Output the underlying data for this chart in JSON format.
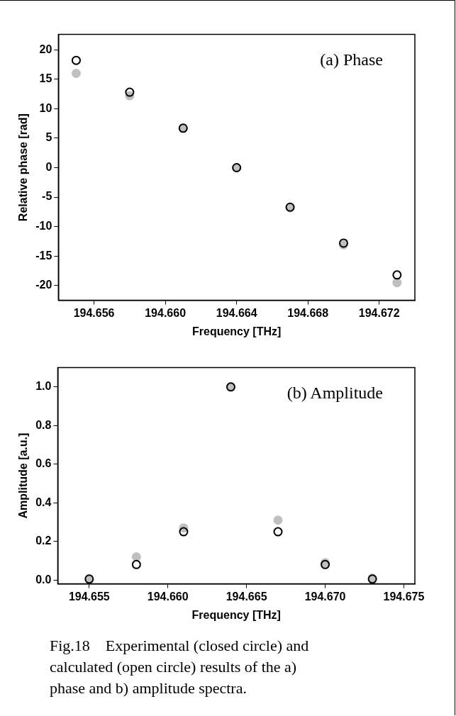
{
  "chart_data": [
    {
      "type": "scatter",
      "title": "(a) Phase",
      "xlabel": "Frequency [THz]",
      "ylabel": "Relative phase [rad]",
      "x": [
        194.655,
        194.658,
        194.661,
        194.664,
        194.667,
        194.67,
        194.673
      ],
      "series": [
        {
          "color": "#c0c0c0",
          "values": [
            16,
            12.2,
            6.7,
            0,
            -6.8,
            -13.1,
            -19.5
          ]
        },
        {
          "color": "#000000",
          "values": [
            18.2,
            12.8,
            6.7,
            0,
            -6.7,
            -12.8,
            -18.2
          ]
        }
      ],
      "xlim": [
        194.654,
        194.674
      ],
      "xticks": [
        {
          "value": 194.656,
          "label": "194.656"
        },
        {
          "value": 194.66,
          "label": "194.660"
        },
        {
          "value": 194.664,
          "label": "194.664"
        },
        {
          "value": 194.668,
          "label": "194.668"
        },
        {
          "value": 194.672,
          "label": "194.672"
        }
      ],
      "ylim": [
        -22.5,
        22.6
      ],
      "yticks": [
        -20,
        -15,
        -10,
        -5,
        0,
        5,
        10,
        15,
        20
      ],
      "grid": false,
      "legend": false,
      "marker": "circle"
    },
    {
      "type": "scatter",
      "title": "(b) Amplitude",
      "xlabel": "Frequency [THz]",
      "ylabel": "Amplitude [a.u.]",
      "x": [
        194.655,
        194.658,
        194.661,
        194.664,
        194.667,
        194.67,
        194.673
      ],
      "series": [
        {
          "color": "#c0c0c0",
          "values": [
            0.005,
            0.12,
            0.27,
            1.0,
            0.31,
            0.09,
            0.01
          ]
        },
        {
          "color": "#000000",
          "values": [
            0.005,
            0.08,
            0.25,
            1.0,
            0.25,
            0.08,
            0.005
          ]
        }
      ],
      "xlim": [
        194.653,
        194.6757
      ],
      "xticks": [
        {
          "value": 194.655,
          "label": "194.655"
        },
        {
          "value": 194.66,
          "label": "194.660"
        },
        {
          "value": 194.665,
          "label": "194.665"
        },
        {
          "value": 194.67,
          "label": "194.670"
        },
        {
          "value": 194.675,
          "label": "194.675"
        }
      ],
      "ylim": [
        -0.02,
        1.1
      ],
      "yticks": [
        {
          "value": 0,
          "label": "0.0"
        },
        {
          "value": 0.2,
          "label": "0.2"
        },
        {
          "value": 0.4,
          "label": "0.4"
        },
        {
          "value": 0.6,
          "label": "0.6"
        },
        {
          "value": 0.8,
          "label": "0.8"
        },
        {
          "value": 1,
          "label": "1.0"
        }
      ],
      "grid": false,
      "legend": false,
      "marker": "circle",
      "annotations": [
        "Fig.18　Experimental (closed circle) and calculated (open circle) results of the a) phase and b) amplitude spectra."
      ]
    }
  ]
}
